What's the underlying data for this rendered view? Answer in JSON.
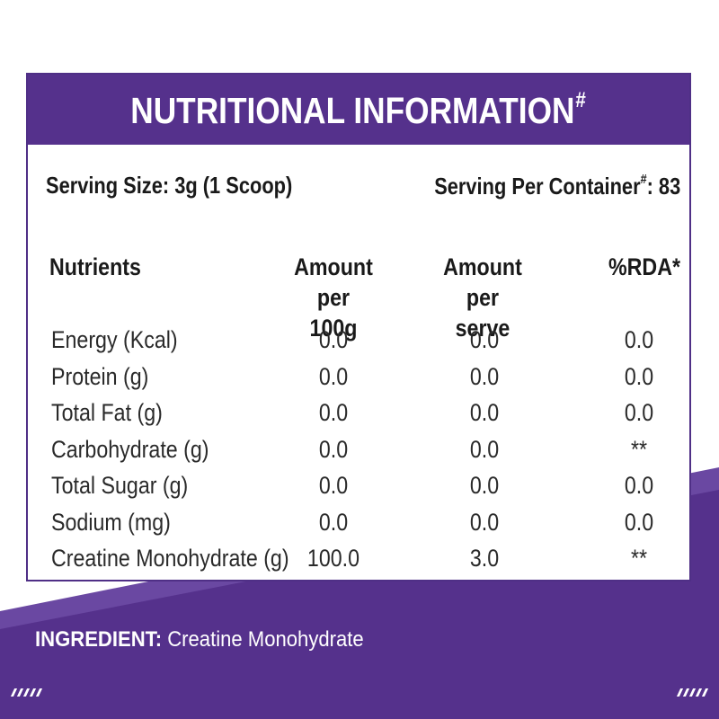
{
  "header": {
    "title": "NUTRITIONAL INFORMATION",
    "title_mark": "#"
  },
  "serving": {
    "size_label": "Serving Size: 3g (1 Scoop)",
    "per_container_label": "Serving Per Container",
    "per_container_mark": "#",
    "per_container_value": ": 83"
  },
  "table": {
    "headers": {
      "nutrients": "Nutrients",
      "per100_line1": "Amount per",
      "per100_line2": "100g",
      "perserve_line1": "Amount per",
      "perserve_line2": "serve",
      "rda": "%RDA*"
    },
    "rows": [
      {
        "name": "Energy (Kcal)",
        "per100": "0.0",
        "serve": "0.0",
        "rda": "0.0"
      },
      {
        "name": "Protein (g)",
        "per100": "0.0",
        "serve": "0.0",
        "rda": "0.0"
      },
      {
        "name": "Total Fat (g)",
        "per100": "0.0",
        "serve": "0.0",
        "rda": "0.0"
      },
      {
        "name": "Carbohydrate (g)",
        "per100": "0.0",
        "serve": "0.0",
        "rda": "**"
      },
      {
        "name": "Total Sugar (g)",
        "per100": "0.0",
        "serve": "0.0",
        "rda": "0.0"
      },
      {
        "name": "Sodium (mg)",
        "per100": "0.0",
        "serve": "0.0",
        "rda": "0.0"
      },
      {
        "name": "Creatine Monohydrate (g)",
        "per100": "100.0",
        "serve": "3.0",
        "rda": "**"
      }
    ]
  },
  "ingredient": {
    "label": "INGREDIENT:",
    "value": " Creatine Monohydrate"
  },
  "colors": {
    "purple": "#55318c",
    "purple_dark": "#4a2a7e",
    "purple_light": "#6b4aa0"
  }
}
